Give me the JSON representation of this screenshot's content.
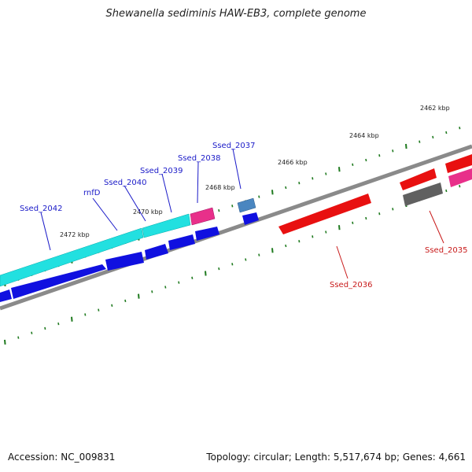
{
  "title": "Shewanella sediminis HAW-EB3, complete genome",
  "footer": {
    "accession": "Accession: NC_009831",
    "summary": "Topology: circular; Length: 5,517,674 bp; Genes: 4,661"
  },
  "colors": {
    "forward_label": "#1a1ac8",
    "reverse_label": "#c81a1a",
    "backbone": "#8a8a8a",
    "tick": "#1f7a1f"
  },
  "ticks": [
    {
      "label": "2462 kbp"
    },
    {
      "label": "2464 kbp"
    },
    {
      "label": "2466 kbp"
    },
    {
      "label": "2468 kbp"
    },
    {
      "label": "2470 kbp"
    },
    {
      "label": "2472 kbp"
    }
  ],
  "genes": [
    {
      "label": "Ssed_2037",
      "strand": "forward"
    },
    {
      "label": "Ssed_2038",
      "strand": "forward"
    },
    {
      "label": "Ssed_2039",
      "strand": "forward"
    },
    {
      "label": "Ssed_2040",
      "strand": "forward"
    },
    {
      "label": "rnfD",
      "strand": "forward"
    },
    {
      "label": "Ssed_2042",
      "strand": "forward"
    },
    {
      "label": "Ssed_2036",
      "strand": "reverse"
    },
    {
      "label": "Ssed_2035",
      "strand": "reverse"
    }
  ]
}
